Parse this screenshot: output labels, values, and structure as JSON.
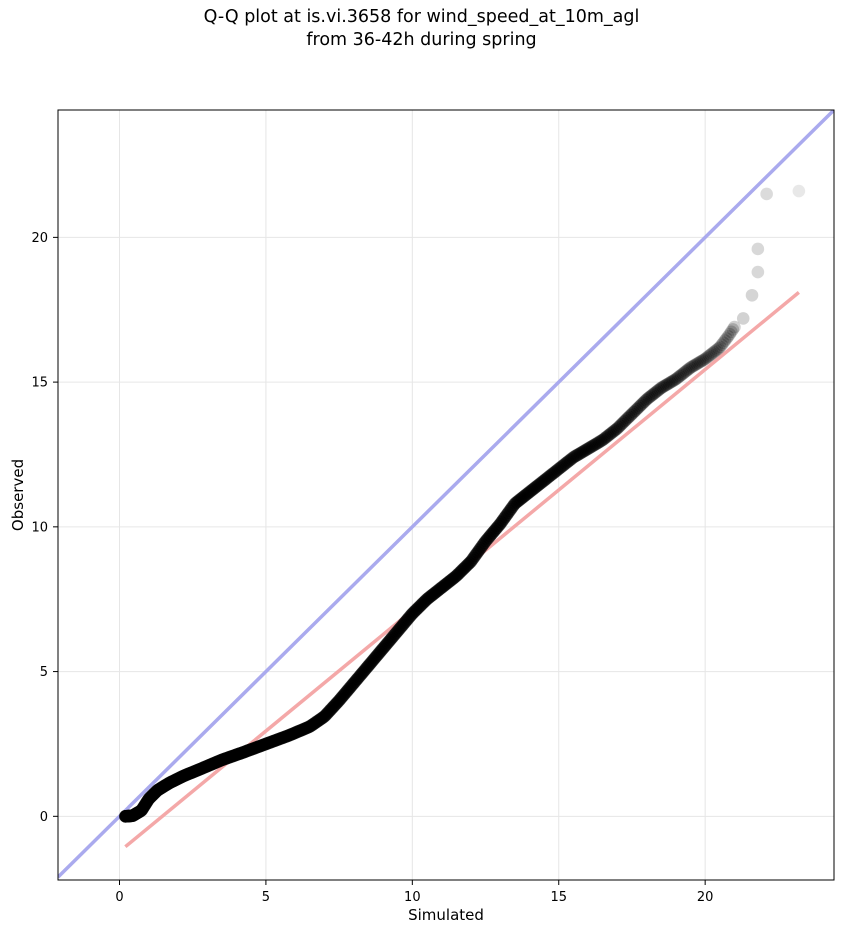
{
  "chart_data": {
    "type": "scatter",
    "title": [
      "Q-Q plot at is.vi.3658 for wind_speed_at_10m_agl",
      "from 36-42h during spring"
    ],
    "xlabel": "Simulated",
    "ylabel": "Observed",
    "xlim": [
      -2.1,
      24.4
    ],
    "ylim": [
      -2.2,
      24.4
    ],
    "xticks": [
      0,
      5,
      10,
      15,
      20
    ],
    "yticks": [
      0,
      5,
      10,
      15,
      20
    ],
    "grid": true,
    "legend": "none",
    "colors": {
      "points": "#000000",
      "identity_line": "#aaaaee",
      "fit_line": "#f4a8a8"
    },
    "reference_lines": {
      "identity": {
        "x": [
          -2.1,
          24.4
        ],
        "y": [
          -2.1,
          24.4
        ]
      },
      "fit": {
        "x": [
          0.2,
          23.2
        ],
        "y": [
          -1.05,
          18.1
        ]
      }
    },
    "quantile_anchors": {
      "x": [
        0.2,
        0.45,
        0.75,
        1.0,
        1.3,
        1.7,
        2.2,
        2.8,
        3.5,
        4.2,
        5.0,
        5.8,
        6.5,
        7.0,
        7.5,
        8.0,
        8.5,
        9.0,
        9.5,
        10.0,
        10.5,
        11.0,
        11.5,
        12.0,
        12.5,
        13.0,
        13.5,
        14.0,
        14.5,
        15.0,
        15.5,
        16.0,
        16.5,
        17.0,
        17.5,
        18.0,
        18.5,
        19.0,
        19.5,
        20.0,
        20.5,
        20.8,
        21.0
      ],
      "y": [
        0.0,
        0.02,
        0.2,
        0.6,
        0.9,
        1.15,
        1.4,
        1.65,
        1.95,
        2.2,
        2.5,
        2.8,
        3.1,
        3.45,
        4.0,
        4.6,
        5.2,
        5.8,
        6.4,
        7.0,
        7.5,
        7.9,
        8.3,
        8.8,
        9.5,
        10.1,
        10.8,
        11.2,
        11.6,
        12.0,
        12.4,
        12.7,
        13.0,
        13.4,
        13.9,
        14.4,
        14.8,
        15.1,
        15.5,
        15.8,
        16.2,
        16.6,
        16.9
      ]
    },
    "tail_points": {
      "x": [
        21.3,
        21.6,
        21.8,
        21.8,
        22.1,
        23.2
      ],
      "y": [
        17.2,
        18.0,
        18.8,
        19.6,
        21.5,
        21.6
      ]
    }
  }
}
